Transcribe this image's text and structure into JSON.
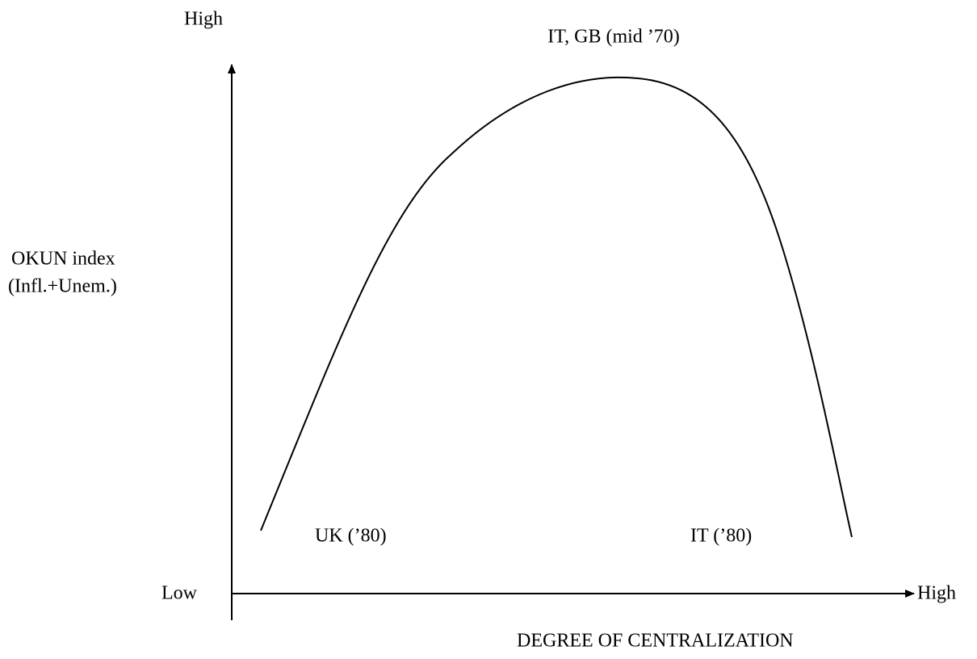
{
  "axes": {
    "y_high": "High",
    "y_label": [
      "OKUN index",
      "(Infl.+Unem.)"
    ],
    "x_low": "Low",
    "x_high": "High",
    "x_label": "DEGREE OF CENTRALIZATION"
  },
  "annotations": {
    "peak": "IT, GB (mid ’70)",
    "left": "UK (’80)",
    "right": "IT (’80)"
  }
}
